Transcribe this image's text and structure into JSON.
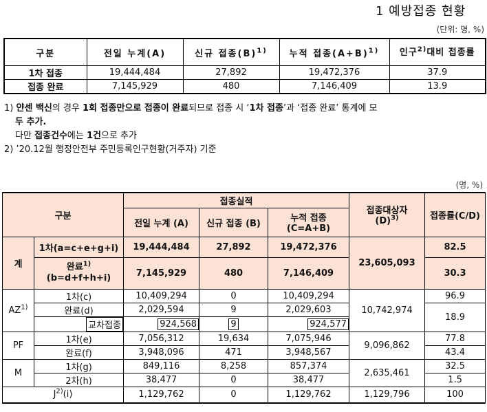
{
  "title": "1 예방접종 현황",
  "unit1": "(단위: 명, %)",
  "summary": {
    "headers": [
      "구분",
      "전일 누계(A)",
      "신규 접종(B)",
      "누적 접종(A+B)",
      "인구",
      "대비 접종률"
    ],
    "sup1": "1)",
    "sup2": "1)",
    "sup3": "2)",
    "rows": [
      {
        "label": "1차 접종",
        "a": "19,444,484",
        "b": "27,892",
        "ab": "19,472,376",
        "rate": "37.9"
      },
      {
        "label": "접종 완료",
        "a": "7,145,929",
        "b": "480",
        "ab": "7,146,409",
        "rate": "13.9"
      }
    ]
  },
  "notes": {
    "n1_num": "1)",
    "n1_a": "얀센 백신",
    "n1_b": "의 경우 ",
    "n1_c": "1회 접종만으로 접종이 완료",
    "n1_d": "되므로 접종 시 ‘",
    "n1_e": "1차 접종",
    "n1_f": "’과 ‘접종 완료’ 통계에 모",
    "n1_line2": "두 추가.",
    "n1_line3a": "다만 ",
    "n1_line3b": "접종건수",
    "n1_line3c": "에는 ",
    "n1_line3d": "1건",
    "n1_line3e": "으로 추가",
    "n2": "2) ’20.12월 행정안전부 주민등록인구현황(거주자) 기준"
  },
  "unit2": "(명, %)",
  "detail": {
    "h_group": "구분",
    "h_perf": "접종실적",
    "h_a": "전일 누계 (A)",
    "h_b": "신규 접종 (B)",
    "h_c1": "누적 접종",
    "h_c2": "(C=A+B)",
    "h_d1": "접종대상자",
    "h_d2": "(D)",
    "h_d_sup": "3)",
    "h_rate": "접종률(C/D)",
    "total_label": "계",
    "total_target": "23,605,093",
    "total_rows": [
      {
        "label": "1차(a=c+e+g+i)",
        "a": "19,444,484",
        "b": "27,892",
        "c": "19,472,376",
        "rate": "82.5"
      },
      {
        "label1": "완료",
        "label_sup": "1)",
        "label2": "(b=d+f+h+i)",
        "a": "7,145,929",
        "b": "480",
        "c": "7,146,409",
        "rate": "30.3"
      }
    ],
    "az": {
      "label": "AZ",
      "sup": "1)",
      "target": "10,742,974",
      "r1": {
        "label": "1차(c)",
        "a": "10,409,294",
        "b": "0",
        "c": "10,409,294",
        "rate": "96.9"
      },
      "r2": {
        "label": "완료(d)",
        "a": "2,029,594",
        "b": "9",
        "c": "2,029,603",
        "rate": "18.9"
      },
      "r3": {
        "label": "교차접종",
        "a": "924,568",
        "b": "9",
        "c": "924,577"
      }
    },
    "pf": {
      "label": "PF",
      "target": "9,096,862",
      "r1": {
        "label": "1차(e)",
        "a": "7,056,312",
        "b": "19,634",
        "c": "7,075,946",
        "rate": "77.8"
      },
      "r2": {
        "label": "완료(f)",
        "a": "3,948,096",
        "b": "471",
        "c": "3,948,567",
        "rate": "43.4"
      }
    },
    "m": {
      "label": "M",
      "target": "2,635,461",
      "r1": {
        "label": "1차(g)",
        "a": "849,116",
        "b": "8,258",
        "c": "857,374",
        "rate": "32.5"
      },
      "r2": {
        "label": "2차(h)",
        "a": "38,477",
        "b": "0",
        "c": "38,477",
        "rate": "1.5"
      }
    },
    "j": {
      "label": "J",
      "sup": "2)",
      "suffix": "(i)",
      "a": "1,129,762",
      "b": "0",
      "c": "1,129,762",
      "d": "1,129,796",
      "rate": "100"
    }
  }
}
